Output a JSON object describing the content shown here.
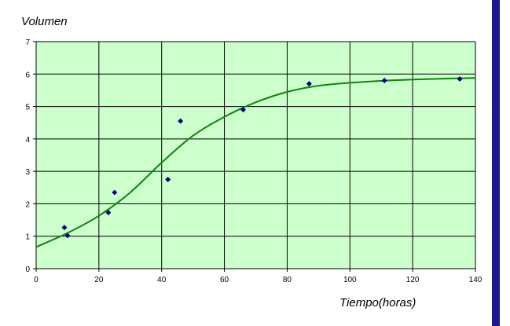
{
  "chart_data": {
    "type": "scatter",
    "xlabel": "Tiempo(horas)",
    "ylabel": "Volumen",
    "xlim": [
      0,
      140
    ],
    "ylim": [
      0,
      7
    ],
    "x_ticks": [
      0,
      20,
      40,
      60,
      80,
      100,
      120,
      140
    ],
    "y_ticks": [
      0,
      1,
      2,
      3,
      4,
      5,
      6,
      7
    ],
    "grid": true,
    "legend": "none",
    "series": [
      {
        "kind": "points",
        "marker": "diamond",
        "color": "#00007f",
        "points": [
          {
            "x": 9,
            "y": 1.27
          },
          {
            "x": 10,
            "y": 1.02
          },
          {
            "x": 23,
            "y": 1.73
          },
          {
            "x": 25,
            "y": 2.35
          },
          {
            "x": 42,
            "y": 2.75
          },
          {
            "x": 46,
            "y": 4.55
          },
          {
            "x": 66,
            "y": 4.9
          },
          {
            "x": 87,
            "y": 5.7
          },
          {
            "x": 111,
            "y": 5.8
          },
          {
            "x": 135,
            "y": 5.85
          }
        ]
      },
      {
        "kind": "fitted-curve",
        "color": "#118211",
        "points": [
          {
            "x": 0,
            "y": 0.67
          },
          {
            "x": 10,
            "y": 1.1
          },
          {
            "x": 20,
            "y": 1.63
          },
          {
            "x": 30,
            "y": 2.35
          },
          {
            "x": 40,
            "y": 3.27
          },
          {
            "x": 50,
            "y": 4.1
          },
          {
            "x": 60,
            "y": 4.68
          },
          {
            "x": 70,
            "y": 5.13
          },
          {
            "x": 80,
            "y": 5.45
          },
          {
            "x": 90,
            "y": 5.64
          },
          {
            "x": 100,
            "y": 5.73
          },
          {
            "x": 110,
            "y": 5.79
          },
          {
            "x": 120,
            "y": 5.83
          },
          {
            "x": 130,
            "y": 5.86
          },
          {
            "x": 140,
            "y": 5.88
          }
        ]
      }
    ],
    "colors": {
      "plot_background": "#ccffcc",
      "gridline": "#000000",
      "side_bar": "#1a1a8c"
    }
  }
}
